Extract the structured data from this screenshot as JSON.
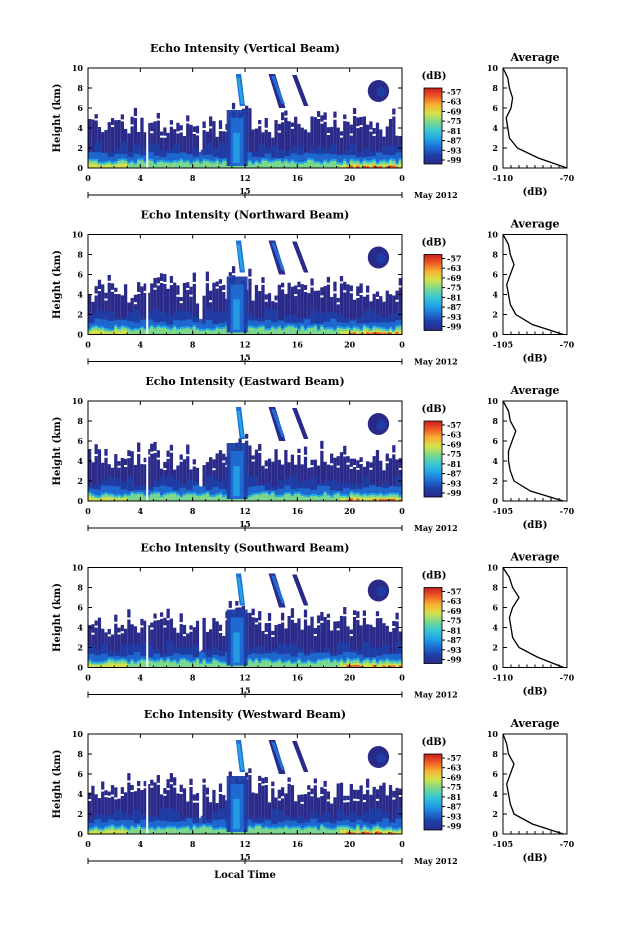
{
  "figure": {
    "xlabel": "Local Time",
    "date_label": "May 2012",
    "day_label": "15"
  },
  "colors": {
    "colorbar": [
      "#2a2a8a",
      "#1e3ea6",
      "#1f6fd6",
      "#23a6e6",
      "#3cc9cf",
      "#7ed98a",
      "#d6e24a",
      "#f6b233",
      "#ef5a24",
      "#c81e1e"
    ]
  },
  "chart_data": [
    {
      "type": "heatmap",
      "title": "Echo Intensity (Vertical Beam)",
      "ylabel": "Height (km)",
      "x_ticks": [
        "0",
        "4",
        "8",
        "12",
        "16",
        "20",
        "0"
      ],
      "y_ticks": [
        "0",
        "2",
        "4",
        "6",
        "8",
        "10"
      ],
      "xlim": [
        0,
        24
      ],
      "ylim": [
        0,
        10
      ],
      "colorbar": {
        "unit": "(dB)",
        "labels": [
          "-57",
          "-63",
          "-69",
          "-75",
          "-81",
          "-87",
          "-93",
          "-99"
        ]
      },
      "profile": {
        "title": "Average",
        "xlabel": "(dB)",
        "x_ticks": [
          "-110",
          "-70"
        ],
        "xlim": [
          -110,
          -70
        ],
        "height": [
          0,
          1,
          2,
          3,
          4,
          5,
          6,
          7,
          8,
          9,
          10
        ],
        "value": [
          -70,
          -88,
          -101,
          -106,
          -107,
          -108,
          -105,
          -104,
          -106,
          -107,
          -110
        ]
      }
    },
    {
      "type": "heatmap",
      "title": "Echo Intensity (Northward Beam)",
      "ylabel": "Height (km)",
      "x_ticks": [
        "0",
        "4",
        "8",
        "12",
        "16",
        "20",
        "0"
      ],
      "y_ticks": [
        "0",
        "2",
        "4",
        "6",
        "8",
        "10"
      ],
      "xlim": [
        0,
        24
      ],
      "ylim": [
        0,
        10
      ],
      "colorbar": {
        "unit": "(dB)",
        "labels": [
          "-57",
          "-63",
          "-69",
          "-75",
          "-81",
          "-87",
          "-93",
          "-99"
        ]
      },
      "profile": {
        "title": "Average",
        "xlabel": "(dB)",
        "x_ticks": [
          "-105",
          "-70"
        ],
        "xlim": [
          -105,
          -70
        ],
        "height": [
          0,
          1,
          2,
          3,
          4,
          5,
          6,
          7,
          8,
          9,
          10
        ],
        "value": [
          -72,
          -89,
          -98,
          -101,
          -102,
          -103,
          -101,
          -99,
          -101,
          -102,
          -105
        ]
      }
    },
    {
      "type": "heatmap",
      "title": "Echo Intensity (Eastward Beam)",
      "ylabel": "Height (km)",
      "x_ticks": [
        "0",
        "4",
        "8",
        "12",
        "16",
        "20",
        "0"
      ],
      "y_ticks": [
        "0",
        "2",
        "4",
        "6",
        "8",
        "10"
      ],
      "xlim": [
        0,
        24
      ],
      "ylim": [
        0,
        10
      ],
      "colorbar": {
        "unit": "(dB)",
        "labels": [
          "-57",
          "-63",
          "-69",
          "-75",
          "-81",
          "-87",
          "-93",
          "-99"
        ]
      },
      "profile": {
        "title": "Average",
        "xlabel": "(dB)",
        "x_ticks": [
          "-105",
          "-70"
        ],
        "xlim": [
          -105,
          -70
        ],
        "height": [
          0,
          1,
          2,
          3,
          4,
          5,
          6,
          7,
          8,
          9,
          10
        ],
        "value": [
          -72,
          -90,
          -99,
          -101,
          -102,
          -102,
          -100,
          -98,
          -101,
          -102,
          -105
        ]
      }
    },
    {
      "type": "heatmap",
      "title": "Echo Intensity (Southward Beam)",
      "ylabel": "Height (km)",
      "x_ticks": [
        "0",
        "4",
        "8",
        "12",
        "16",
        "20",
        "0"
      ],
      "y_ticks": [
        "0",
        "2",
        "4",
        "6",
        "8",
        "10"
      ],
      "xlim": [
        0,
        24
      ],
      "ylim": [
        0,
        10
      ],
      "colorbar": {
        "unit": "(dB)",
        "labels": [
          "-57",
          "-63",
          "-69",
          "-75",
          "-81",
          "-87",
          "-93",
          "-99"
        ]
      },
      "profile": {
        "title": "Average",
        "xlabel": "(dB)",
        "x_ticks": [
          "-110",
          "-70"
        ],
        "xlim": [
          -110,
          -70
        ],
        "height": [
          0,
          1,
          2,
          3,
          4,
          5,
          6,
          7,
          8,
          9,
          10
        ],
        "value": [
          -72,
          -88,
          -100,
          -104,
          -105,
          -106,
          -104,
          -100,
          -104,
          -106,
          -110
        ]
      }
    },
    {
      "type": "heatmap",
      "title": "Echo Intensity (Westward Beam)",
      "ylabel": "Height (km)",
      "x_ticks": [
        "0",
        "4",
        "8",
        "12",
        "16",
        "20",
        "0"
      ],
      "y_ticks": [
        "0",
        "2",
        "4",
        "6",
        "8",
        "10"
      ],
      "xlim": [
        0,
        24
      ],
      "ylim": [
        0,
        10
      ],
      "colorbar": {
        "unit": "(dB)",
        "labels": [
          "-57",
          "-63",
          "-69",
          "-75",
          "-81",
          "-87",
          "-93",
          "-99"
        ]
      },
      "profile": {
        "title": "Average",
        "xlabel": "(dB)",
        "x_ticks": [
          "-105",
          "-70"
        ],
        "xlim": [
          -105,
          -70
        ],
        "height": [
          0,
          1,
          2,
          3,
          4,
          5,
          6,
          7,
          8,
          9,
          10
        ],
        "value": [
          -72,
          -89,
          -99,
          -101,
          -102,
          -103,
          -101,
          -99,
          -102,
          -103,
          -105
        ]
      }
    }
  ]
}
